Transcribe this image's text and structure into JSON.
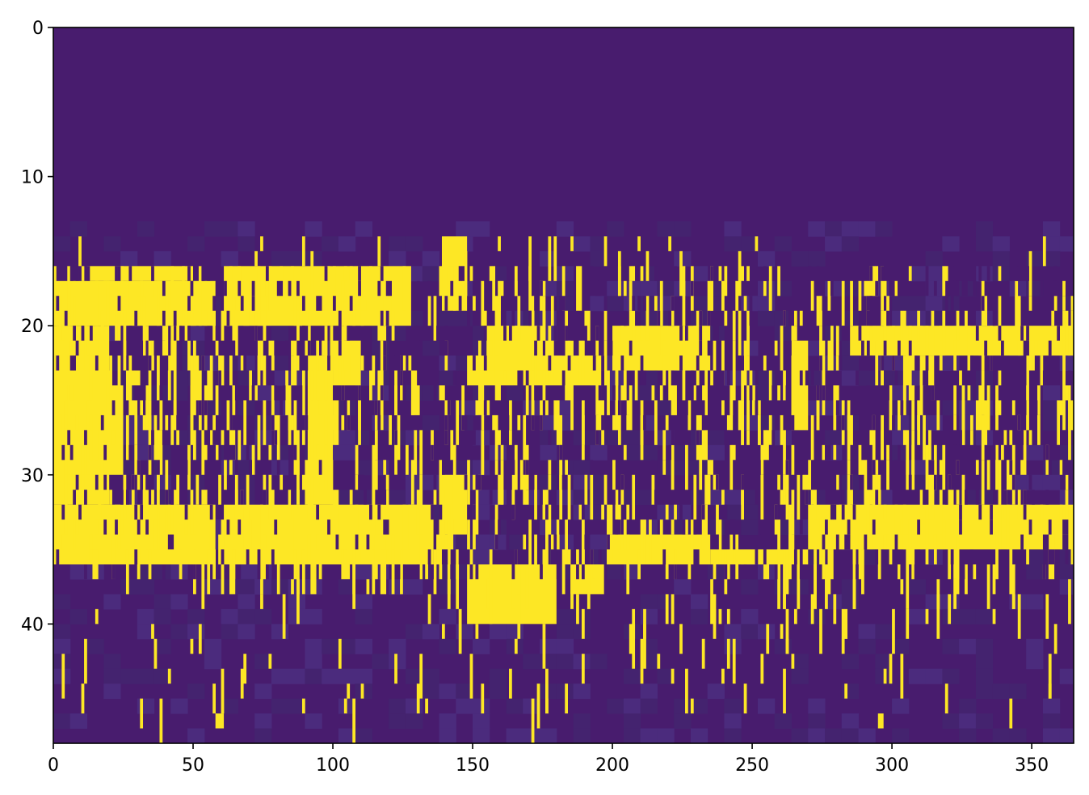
{
  "chart_data": {
    "type": "heatmap",
    "title": "",
    "xlabel": "",
    "ylabel": "",
    "xlim": [
      0,
      365
    ],
    "ylim": [
      48,
      0
    ],
    "n_cols": 365,
    "n_rows": 48,
    "colormap": "viridis-binary",
    "colors": {
      "background_low": "#481c6e",
      "background_mid": "#4b2b7d",
      "high": "#fde725"
    },
    "x_ticks": [
      "0",
      "50",
      "100",
      "150",
      "200",
      "250",
      "300",
      "350"
    ],
    "x_tick_values": [
      0,
      50,
      100,
      150,
      200,
      250,
      300,
      350
    ],
    "y_ticks": [
      "0",
      "10",
      "20",
      "30",
      "40"
    ],
    "y_tick_values": [
      0,
      10,
      20,
      30,
      40
    ],
    "high_blocks": [
      {
        "x": [
          0,
          58
        ],
        "y": [
          17,
          20
        ]
      },
      {
        "x": [
          12,
          50
        ],
        "y": [
          16,
          17
        ]
      },
      {
        "x": [
          61,
          128
        ],
        "y": [
          16,
          20
        ]
      },
      {
        "x": [
          139,
          148
        ],
        "y": [
          14,
          19
        ]
      },
      {
        "x": [
          0,
          20
        ],
        "y": [
          20,
          32
        ]
      },
      {
        "x": [
          5,
          25
        ],
        "y": [
          24,
          30
        ]
      },
      {
        "x": [
          91,
          100
        ],
        "y": [
          22,
          32
        ]
      },
      {
        "x": [
          100,
          110
        ],
        "y": [
          21,
          24
        ]
      },
      {
        "x": [
          148,
          198
        ],
        "y": [
          22,
          24
        ]
      },
      {
        "x": [
          155,
          175
        ],
        "y": [
          20,
          23
        ]
      },
      {
        "x": [
          200,
          235
        ],
        "y": [
          20,
          23
        ]
      },
      {
        "x": [
          264,
          270
        ],
        "y": [
          21,
          27
        ]
      },
      {
        "x": [
          285,
          365
        ],
        "y": [
          20,
          22
        ]
      },
      {
        "x": [
          0,
          58
        ],
        "y": [
          32,
          36
        ]
      },
      {
        "x": [
          61,
          136
        ],
        "y": [
          32,
          36
        ]
      },
      {
        "x": [
          138,
          148
        ],
        "y": [
          30,
          34
        ]
      },
      {
        "x": [
          198,
          235
        ],
        "y": [
          34,
          36
        ]
      },
      {
        "x": [
          235,
          270
        ],
        "y": [
          35,
          36
        ]
      },
      {
        "x": [
          270,
          365
        ],
        "y": [
          32,
          35
        ]
      },
      {
        "x": [
          148,
          180
        ],
        "y": [
          36,
          40
        ]
      },
      {
        "x": [
          185,
          197
        ],
        "y": [
          36,
          38
        ]
      },
      {
        "x": [
          58,
          61
        ],
        "y": [
          46,
          47
        ]
      },
      {
        "x": [
          295,
          297
        ],
        "y": [
          46,
          47
        ]
      }
    ]
  }
}
